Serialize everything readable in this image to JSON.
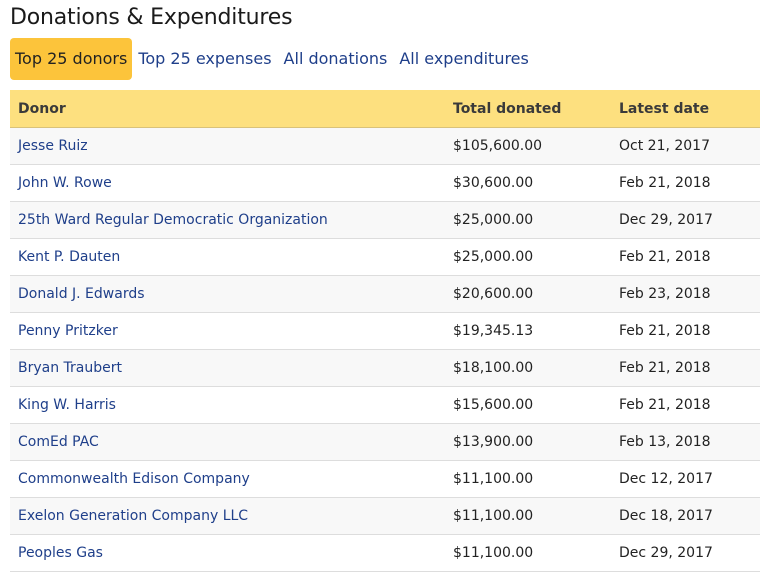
{
  "page": {
    "title": "Donations & Expenditures"
  },
  "tabs": [
    {
      "label": "Top 25 donors",
      "active": true
    },
    {
      "label": "Top 25 expenses",
      "active": false
    },
    {
      "label": "All donations",
      "active": false
    },
    {
      "label": "All expenditures",
      "active": false
    }
  ],
  "table": {
    "headers": {
      "donor": "Donor",
      "total": "Total donated",
      "date": "Latest date"
    },
    "rows": [
      {
        "donor": "Jesse Ruiz",
        "total": "$105,600.00",
        "date": "Oct 21, 2017"
      },
      {
        "donor": "John W. Rowe",
        "total": "$30,600.00",
        "date": "Feb 21, 2018"
      },
      {
        "donor": "25th Ward Regular Democratic Organization",
        "total": "$25,000.00",
        "date": "Dec 29, 2017"
      },
      {
        "donor": "Kent P. Dauten",
        "total": "$25,000.00",
        "date": "Feb 21, 2018"
      },
      {
        "donor": "Donald J. Edwards",
        "total": "$20,600.00",
        "date": "Feb 23, 2018"
      },
      {
        "donor": "Penny Pritzker",
        "total": "$19,345.13",
        "date": "Feb 21, 2018"
      },
      {
        "donor": "Bryan Traubert",
        "total": "$18,100.00",
        "date": "Feb 21, 2018"
      },
      {
        "donor": "King W. Harris",
        "total": "$15,600.00",
        "date": "Feb 21, 2018"
      },
      {
        "donor": "ComEd PAC",
        "total": "$13,900.00",
        "date": "Feb 13, 2018"
      },
      {
        "donor": "Commonwealth Edison Company",
        "total": "$11,100.00",
        "date": "Dec 12, 2017"
      },
      {
        "donor": "Exelon Generation Company LLC",
        "total": "$11,100.00",
        "date": "Dec 18, 2017"
      },
      {
        "donor": "Peoples Gas",
        "total": "$11,100.00",
        "date": "Dec 29, 2017"
      }
    ]
  },
  "colors": {
    "active_tab": "#fcc43b",
    "header_bg": "#fde07f",
    "link": "#1f3f8a"
  }
}
